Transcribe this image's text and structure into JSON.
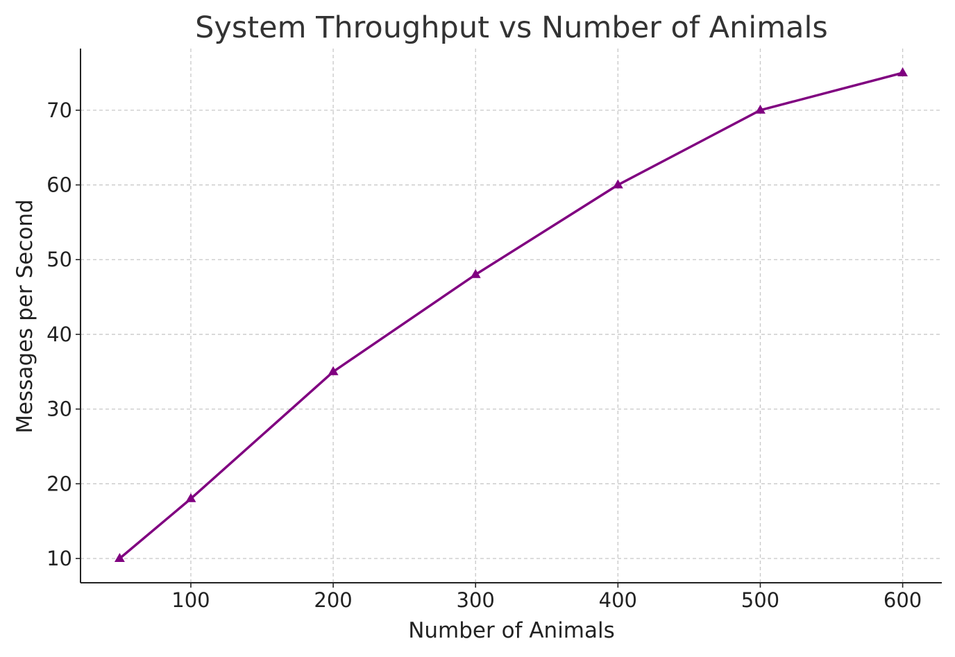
{
  "chart_data": {
    "type": "line",
    "title": "System Throughput vs Number of Animals",
    "xlabel": "Number of Animals",
    "ylabel": "Messages per Second",
    "x": [
      50,
      100,
      200,
      300,
      400,
      500,
      600
    ],
    "series": [
      {
        "values": [
          10,
          18,
          35,
          48,
          60,
          70,
          75
        ]
      }
    ],
    "xticks": [
      100,
      200,
      300,
      400,
      500,
      600
    ],
    "yticks": [
      10,
      20,
      30,
      40,
      50,
      60,
      70
    ],
    "xlim": [
      22.5,
      627.5
    ],
    "ylim": [
      6.75,
      78.25
    ],
    "grid": true,
    "line_color": "#800080",
    "marker": "triangle"
  }
}
